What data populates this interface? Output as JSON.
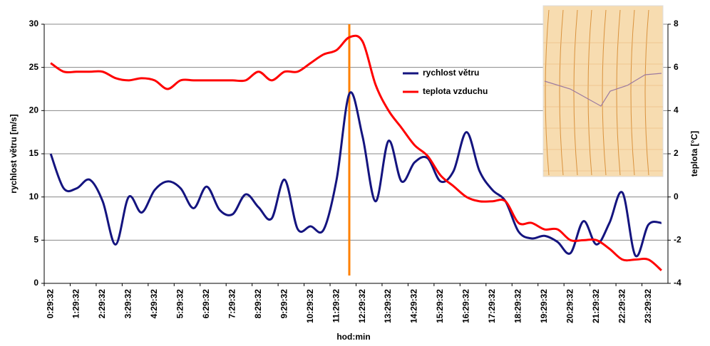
{
  "chart_data": {
    "type": "line",
    "categories": [
      "0:29:32",
      null,
      "1:29:32",
      null,
      "2:29:32",
      null,
      "3:29:32",
      null,
      "4:29:32",
      null,
      "5:29:32",
      null,
      "6:29:32",
      null,
      "7:29:32",
      null,
      "8:29:32",
      null,
      "9:29:32",
      null,
      "10:29:32",
      null,
      "11:29:32",
      null,
      "12:29:32",
      null,
      "13:29:32",
      null,
      "14:29:32",
      null,
      "15:29:32",
      null,
      "16:29:32",
      null,
      "17:29:32",
      null,
      "18:29:32",
      null,
      "19:29:32",
      null,
      "20:29:32",
      null,
      "21:29:32",
      null,
      "22:29:32",
      null,
      "23:29:32",
      null
    ],
    "x_label": "hod:min",
    "y_label": "rychlost větru [m/s]",
    "y2_label": "teplota [°C]",
    "ylim": [
      0,
      30
    ],
    "yticks": [
      0,
      5,
      10,
      15,
      20,
      25,
      30
    ],
    "y2lim": [
      -4,
      8
    ],
    "y2ticks": [
      -4,
      -2,
      0,
      2,
      4,
      6,
      8
    ],
    "grid": true,
    "legend": "inside",
    "series": [
      {
        "name": "rychlost větru",
        "color": "#14147f",
        "axis": "y",
        "values": [
          15,
          11,
          11,
          12,
          9.5,
          4.5,
          10,
          8.2,
          10.8,
          11.8,
          11,
          8.7,
          11.2,
          8.5,
          8,
          10.3,
          8.8,
          7.5,
          12,
          6.3,
          6.6,
          6.2,
          12,
          22,
          17,
          9.5,
          16.5,
          11.8,
          14,
          14.5,
          11.8,
          13,
          17.5,
          13,
          10.8,
          9.5,
          6,
          5.2,
          5.5,
          4.8,
          3.5,
          7.2,
          4.5,
          7,
          10.5,
          3.2,
          6.8,
          7
        ]
      },
      {
        "name": "teplota vzduchu",
        "color": "#ff0000",
        "axis": "y2",
        "values": [
          6.2,
          5.8,
          5.8,
          5.8,
          5.8,
          5.5,
          5.4,
          5.5,
          5.4,
          5.0,
          5.4,
          5.4,
          5.4,
          5.4,
          5.4,
          5.4,
          5.8,
          5.4,
          5.8,
          5.8,
          6.2,
          6.6,
          6.8,
          7.4,
          7.2,
          5.2,
          4.0,
          3.2,
          2.4,
          1.9,
          1.0,
          0.5,
          0,
          -0.2,
          -0.2,
          -0.2,
          -1.2,
          -1.2,
          -1.5,
          -1.5,
          -2.0,
          -2.0,
          -2.0,
          -2.4,
          -2.9,
          -2.9,
          -2.9,
          -3.4
        ]
      }
    ]
  }
}
